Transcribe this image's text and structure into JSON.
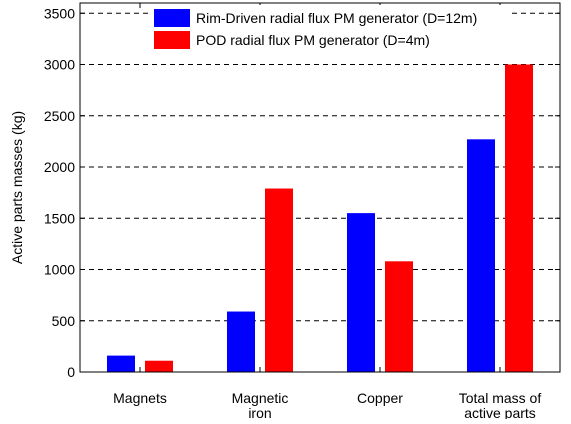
{
  "chart_data": {
    "type": "bar",
    "title": "",
    "xlabel": "",
    "ylabel": "Active parts masses (kg)",
    "categories": [
      [
        "Magnets"
      ],
      [
        "Magnetic",
        "iron"
      ],
      [
        "Copper"
      ],
      [
        "Total mass of",
        "active parts"
      ]
    ],
    "series": [
      {
        "name": "Rim-Driven radial flux PM generator (D=12m)",
        "color": "#0000ff",
        "values": [
          160,
          590,
          1550,
          2270
        ]
      },
      {
        "name": "POD radial flux PM generator (D=4m)",
        "color": "#ff0000",
        "values": [
          110,
          1790,
          1080,
          3000
        ]
      }
    ],
    "ylim": [
      0,
      3600
    ],
    "yticks": [
      0,
      500,
      1000,
      1500,
      2000,
      2500,
      3000,
      3500
    ],
    "grid": "y-dashed",
    "legend_position": "top-center"
  }
}
